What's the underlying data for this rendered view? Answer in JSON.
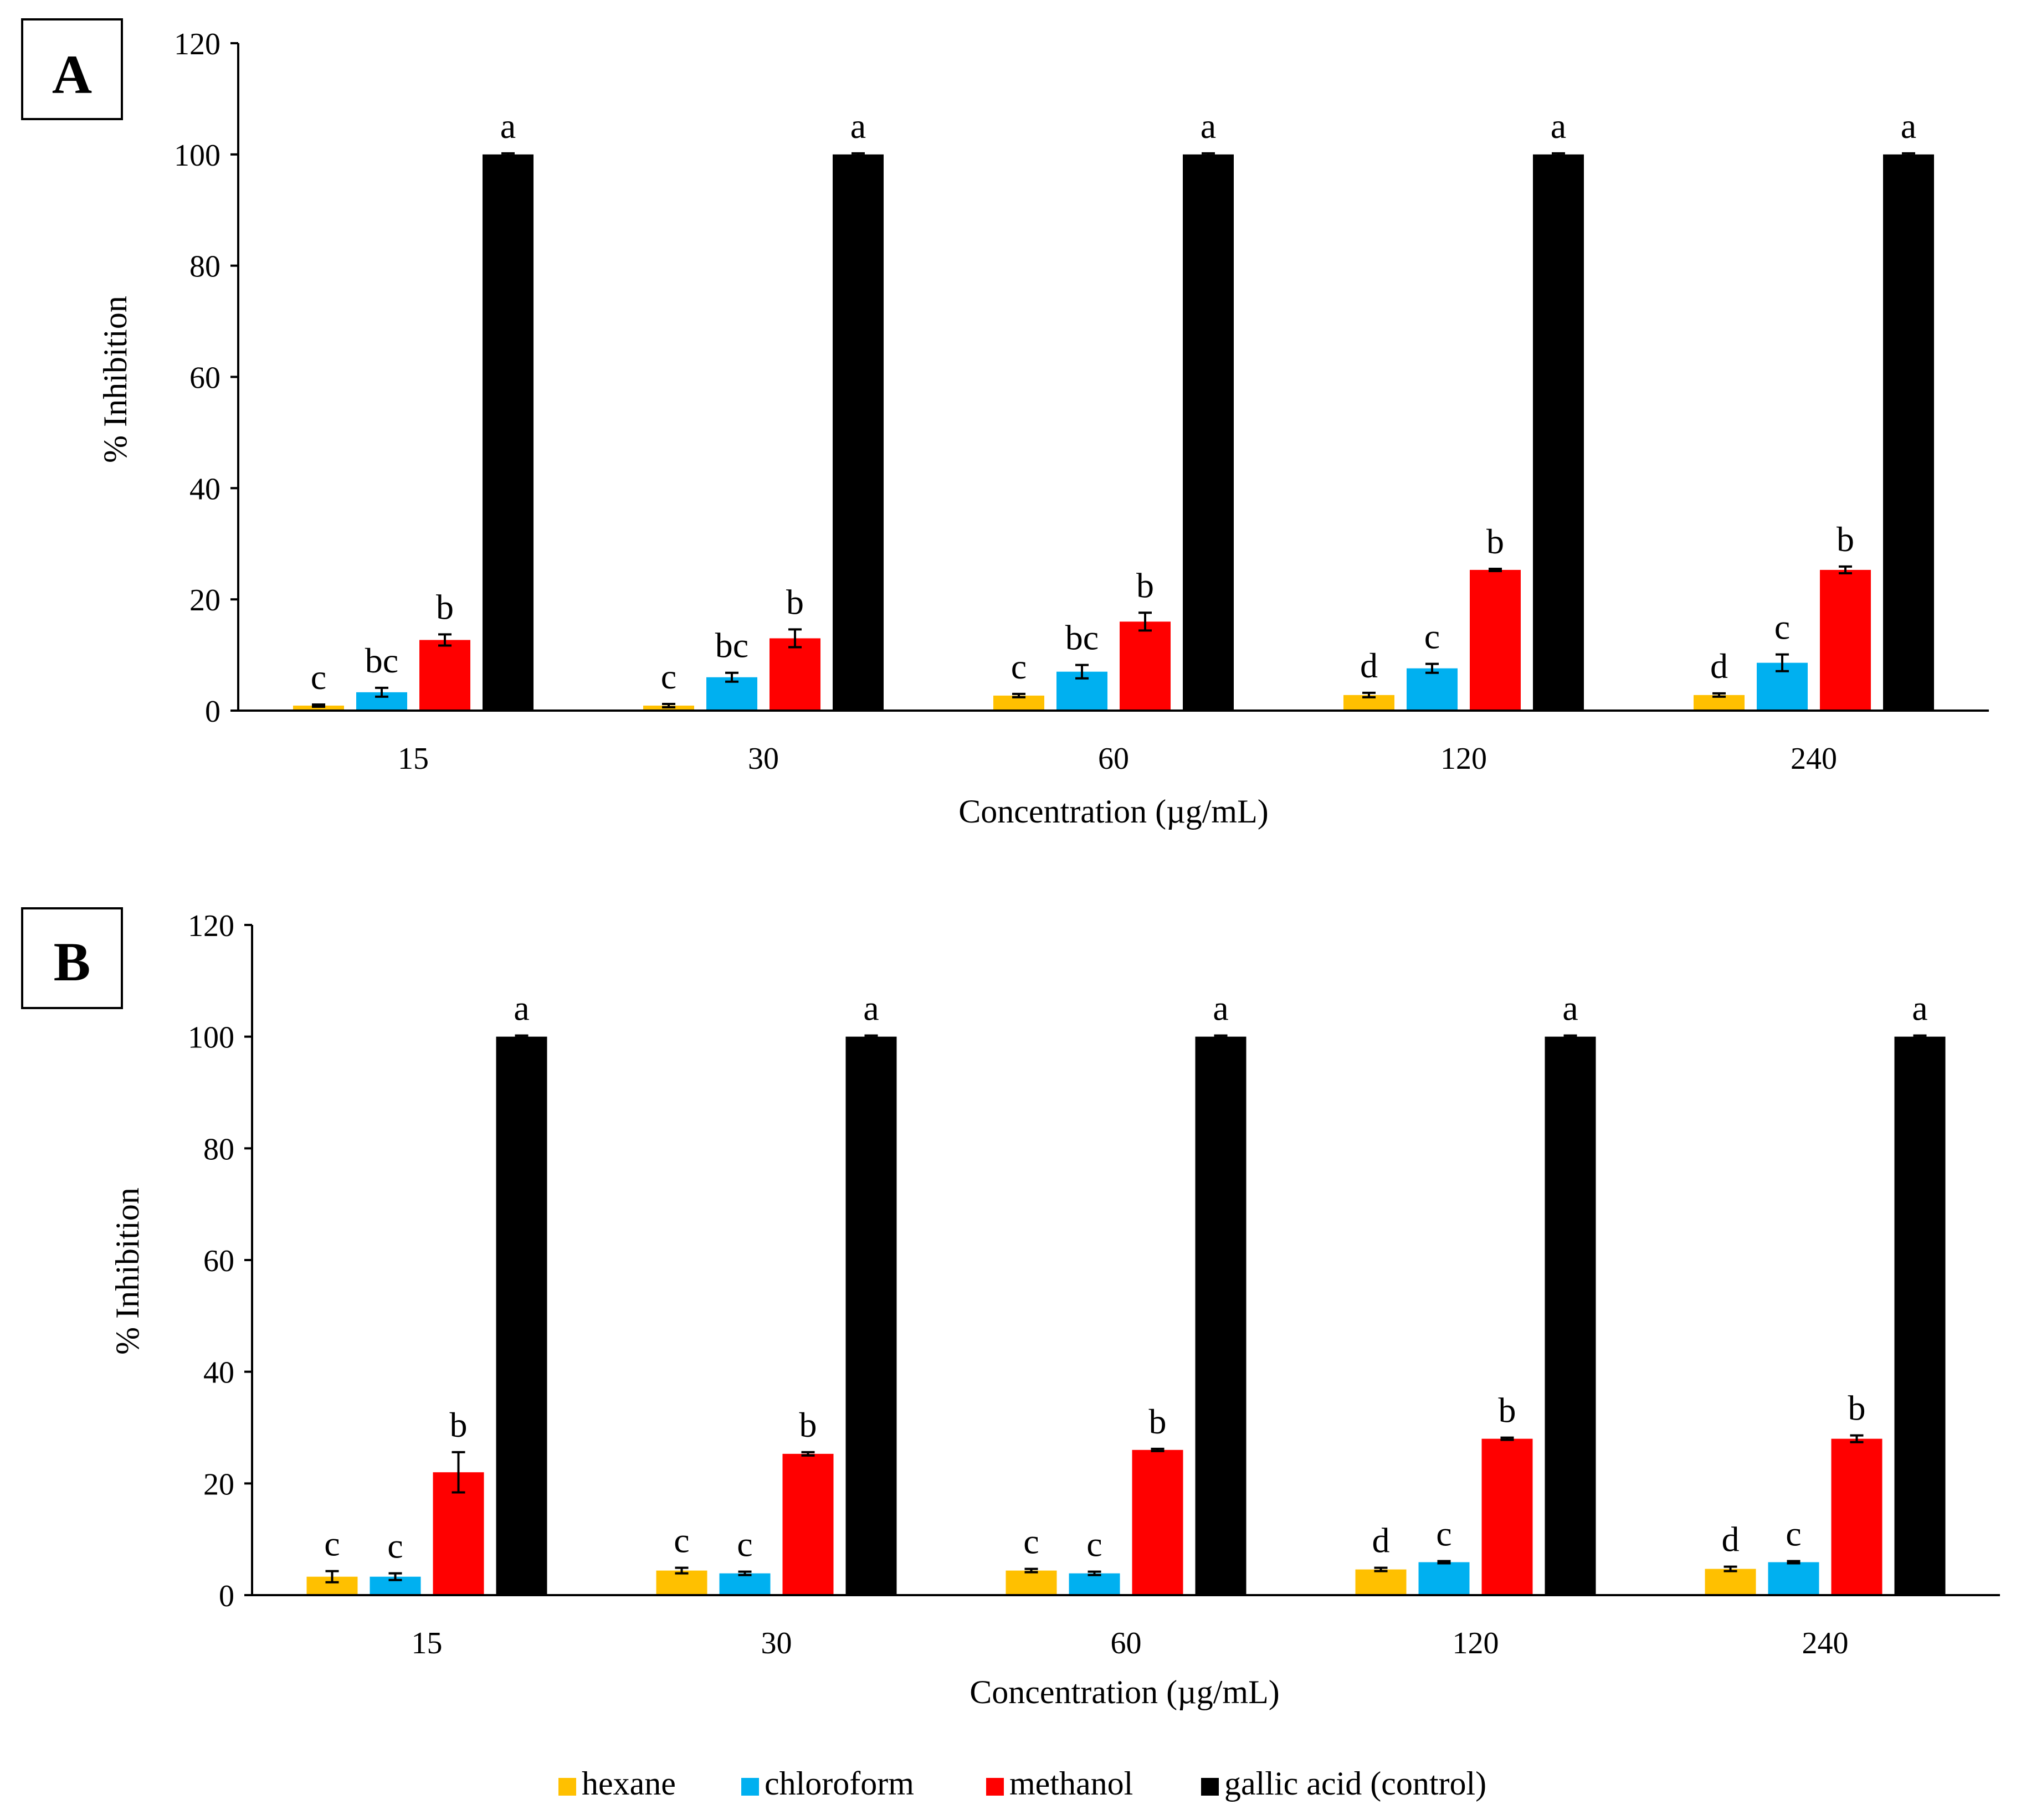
{
  "colors": {
    "hexane": "#FFC000",
    "chloroform": "#00B0F0",
    "methanol": "#FF0000",
    "gallic_acid": "#000000"
  },
  "legend": {
    "position": "bottom-center",
    "items": [
      {
        "label": "hexane",
        "color_key": "hexane"
      },
      {
        "label": "chloroform",
        "color_key": "chloroform"
      },
      {
        "label": "methanol",
        "color_key": "methanol"
      },
      {
        "label": "gallic acid (control)",
        "color_key": "gallic_acid"
      }
    ]
  },
  "chart_data": [
    {
      "panel": "A",
      "type": "bar",
      "title": "",
      "xlabel": "Concentration (µg/mL)",
      "ylabel": "% Inhibition",
      "ylim": [
        0,
        120
      ],
      "yticks": [
        "0",
        "20",
        "40",
        "60",
        "80",
        "100",
        "120"
      ],
      "categories": [
        "15",
        "30",
        "60",
        "120",
        "240"
      ],
      "series": [
        {
          "name": "hexane",
          "color_key": "hexane",
          "values": [
            0.9,
            0.9,
            2.7,
            2.8,
            2.8
          ],
          "errors": [
            0.2,
            0.3,
            0.3,
            0.4,
            0.3
          ],
          "letters": [
            "c",
            "c",
            "c",
            "d",
            "d"
          ]
        },
        {
          "name": "chloroform",
          "color_key": "chloroform",
          "values": [
            3.3,
            6.0,
            7.0,
            7.6,
            8.6
          ],
          "errors": [
            0.8,
            0.8,
            1.2,
            0.8,
            1.5
          ],
          "letters": [
            "bc",
            "bc",
            "bc",
            "c",
            "c"
          ]
        },
        {
          "name": "methanol",
          "color_key": "methanol",
          "values": [
            12.7,
            13.0,
            16.0,
            25.3,
            25.3
          ],
          "errors": [
            1.0,
            1.6,
            1.6,
            0.2,
            0.6
          ],
          "letters": [
            "b",
            "b",
            "b",
            "b",
            "b"
          ]
        },
        {
          "name": "gallic acid (control)",
          "color_key": "gallic_acid",
          "values": [
            100,
            100,
            100,
            100,
            100
          ],
          "errors": [
            0.2,
            0.2,
            0.2,
            0.2,
            0.2
          ],
          "letters": [
            "a",
            "a",
            "a",
            "a",
            "a"
          ]
        }
      ]
    },
    {
      "panel": "B",
      "type": "bar",
      "title": "",
      "xlabel": "Concentration (µg/mL)",
      "ylabel": "% Inhibition",
      "ylim": [
        0,
        120
      ],
      "yticks": [
        "0",
        "20",
        "40",
        "60",
        "80",
        "100",
        "120"
      ],
      "categories": [
        "15",
        "30",
        "60",
        "120",
        "240"
      ],
      "series": [
        {
          "name": "hexane",
          "color_key": "hexane",
          "values": [
            3.3,
            4.4,
            4.4,
            4.6,
            4.7
          ],
          "errors": [
            1.0,
            0.5,
            0.3,
            0.3,
            0.4
          ],
          "letters": [
            "c",
            "c",
            "c",
            "d",
            "d"
          ]
        },
        {
          "name": "chloroform",
          "color_key": "chloroform",
          "values": [
            3.3,
            3.9,
            3.9,
            5.9,
            5.9
          ],
          "errors": [
            0.6,
            0.3,
            0.3,
            0.2,
            0.2
          ],
          "letters": [
            "c",
            "c",
            "c",
            "c",
            "c"
          ]
        },
        {
          "name": "methanol",
          "color_key": "methanol",
          "values": [
            22.0,
            25.3,
            26.0,
            28.0,
            28.0
          ],
          "errors": [
            3.6,
            0.3,
            0.2,
            0.2,
            0.6
          ],
          "letters": [
            "b",
            "b",
            "b",
            "b",
            "b"
          ]
        },
        {
          "name": "gallic acid (control)",
          "color_key": "gallic_acid",
          "values": [
            100,
            100,
            100,
            100,
            100
          ],
          "errors": [
            0.2,
            0.2,
            0.2,
            0.2,
            0.2
          ],
          "letters": [
            "a",
            "a",
            "a",
            "a",
            "a"
          ]
        }
      ]
    }
  ]
}
